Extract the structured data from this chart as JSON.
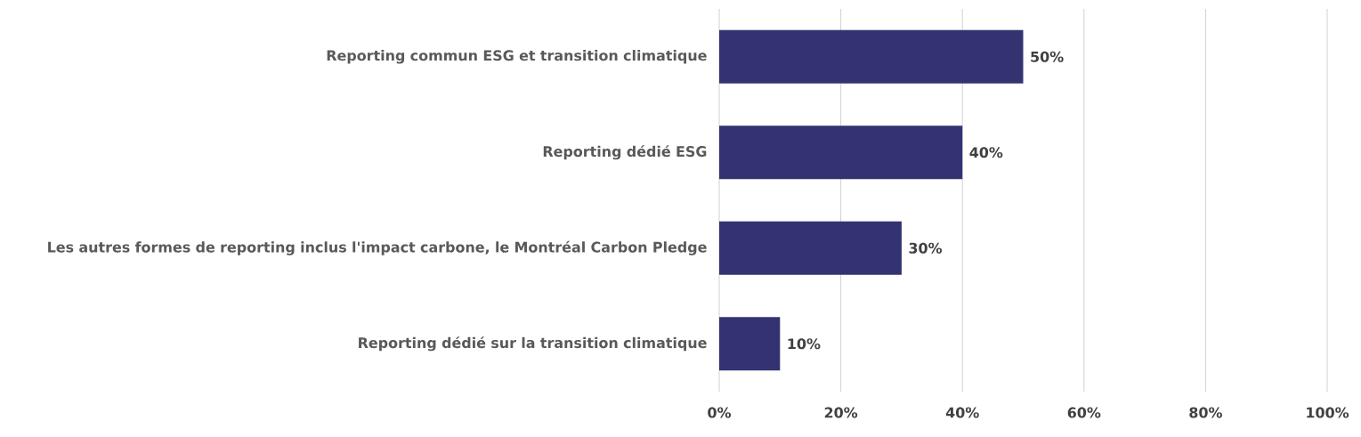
{
  "chart_data": {
    "type": "bar",
    "orientation": "horizontal",
    "categories": [
      "Reporting commun ESG et transition climatique",
      "Reporting dédié ESG",
      "Les autres formes de reporting inclus l'impact carbone, le Montréal Carbon Pledge",
      "Reporting dédié sur la transition climatique"
    ],
    "values": [
      50,
      40,
      30,
      10
    ],
    "value_labels": [
      "50%",
      "40%",
      "30%",
      "10%"
    ],
    "color": "#333372",
    "xlim": [
      0,
      100
    ],
    "xticks": [
      {
        "value": 0,
        "label": "0%"
      },
      {
        "value": 20,
        "label": "20%"
      },
      {
        "value": 40,
        "label": "40%"
      },
      {
        "value": 60,
        "label": "60%"
      },
      {
        "value": 80,
        "label": "80%"
      },
      {
        "value": 100,
        "label": "100%"
      }
    ],
    "grid": "x"
  }
}
